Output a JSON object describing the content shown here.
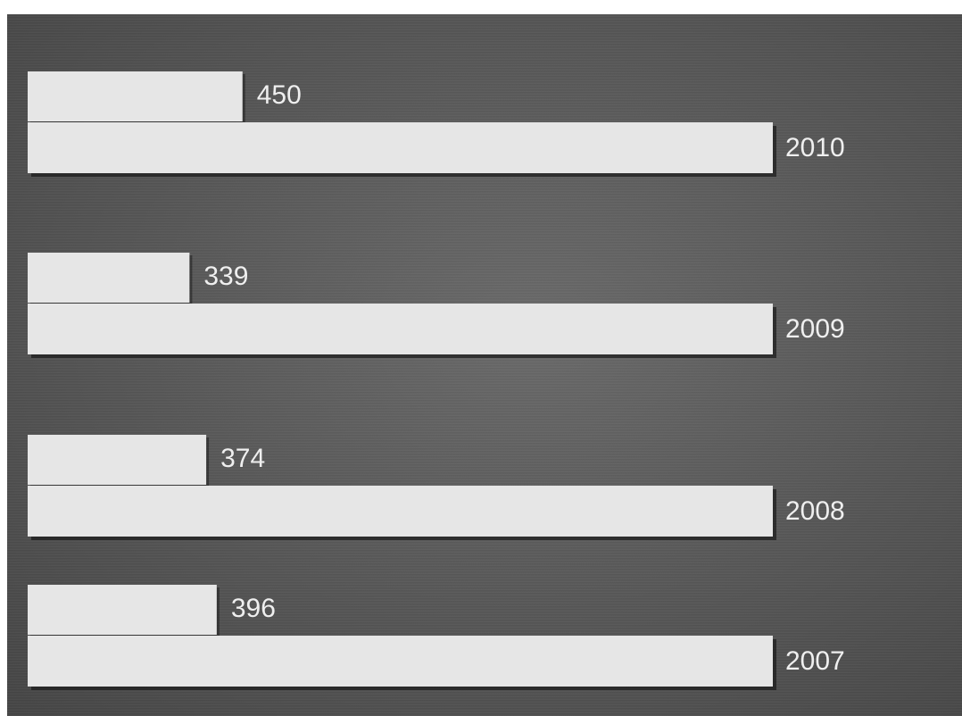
{
  "chart_data": {
    "type": "bar",
    "orientation": "horizontal",
    "categories": [
      "2010",
      "2009",
      "2008",
      "2007"
    ],
    "series": [
      {
        "values": [
          450,
          339,
          374,
          396
        ]
      },
      {
        "values": [
          null,
          null,
          null,
          null
        ]
      }
    ],
    "title": "",
    "xlabel": "",
    "ylabel": "",
    "grid": false,
    "legend": "none",
    "colors": {
      "background": "#5a5a5a",
      "bar": "#e6e6e6",
      "label": "#efefef"
    }
  }
}
